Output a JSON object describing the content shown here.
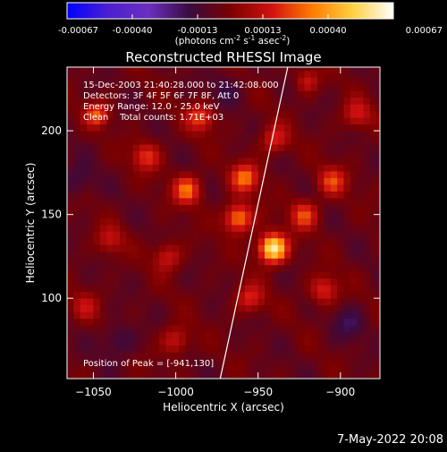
{
  "colorbar": {
    "ticks": [
      "-0.00067",
      "-0.00040",
      "-0.00013",
      "0.00013",
      "0.00040",
      "0.00067"
    ],
    "unit_label_parts": [
      "(photons cm",
      "-2",
      " s",
      "-1",
      " asec",
      "-2",
      ")"
    ],
    "stops": [
      "#0000ff",
      "#4b1fd0",
      "#6a2fbf",
      "#3a0a40",
      "#7a0000",
      "#d01010",
      "#ff7a00",
      "#ffd040",
      "#ffffff"
    ]
  },
  "header": {
    "title": "Reconstructed RHESSI Image",
    "info_lines": [
      "15-Dec-2003 21:40:28.000 to 21:42:08.000",
      "Detectors: 3F 4F 5F 6F 7F 8F, Att 0",
      "Energy Range: 12.0 - 25.0 keV",
      "Clean    Total counts: 1.71E+03"
    ],
    "peak_label": "Position of Peak = [-941,130]"
  },
  "footer": {
    "timestamp": "7-May-2022 20:08"
  },
  "chart_data": {
    "type": "heatmap",
    "title": "Reconstructed RHESSI Image",
    "xlabel": "Heliocentric X (arcsec)",
    "ylabel": "Heliocentric Y (arcsec)",
    "xlim": [
      -1066,
      -876
    ],
    "ylim": [
      52,
      238
    ],
    "x_ticks": [
      -1050,
      -1000,
      -950,
      -900
    ],
    "y_ticks": [
      100,
      150,
      200
    ],
    "x_tick_labels": [
      "−1050",
      "−1000",
      "−950",
      "−900"
    ],
    "y_tick_labels": [
      "100",
      "150",
      "200"
    ],
    "peak": {
      "x": -941,
      "y": 130
    },
    "limb_line": [
      [
        -973,
        52
      ],
      [
        -932,
        238
      ]
    ],
    "color_range": [
      -0.00067,
      0.00067
    ],
    "sources": [
      {
        "x": -941,
        "y": 130,
        "amp": 0.00067,
        "sigma": 6
      },
      {
        "x": -962,
        "y": 148,
        "amp": 0.00042,
        "sigma": 6
      },
      {
        "x": -958,
        "y": 172,
        "amp": 0.00036,
        "sigma": 6
      },
      {
        "x": -993,
        "y": 165,
        "amp": 0.00036,
        "sigma": 6
      },
      {
        "x": -985,
        "y": 208,
        "amp": 0.00028,
        "sigma": 6
      },
      {
        "x": -1048,
        "y": 210,
        "amp": 0.00032,
        "sigma": 5
      },
      {
        "x": -1018,
        "y": 185,
        "amp": 0.00026,
        "sigma": 6
      },
      {
        "x": -922,
        "y": 150,
        "amp": 0.0003,
        "sigma": 6
      },
      {
        "x": -905,
        "y": 170,
        "amp": 0.00028,
        "sigma": 6
      },
      {
        "x": -940,
        "y": 195,
        "amp": 0.00024,
        "sigma": 6
      },
      {
        "x": -955,
        "y": 100,
        "amp": 0.00024,
        "sigma": 6
      },
      {
        "x": -910,
        "y": 105,
        "amp": 0.00026,
        "sigma": 6
      },
      {
        "x": -1005,
        "y": 125,
        "amp": 0.00022,
        "sigma": 6
      },
      {
        "x": -1040,
        "y": 135,
        "amp": 0.00018,
        "sigma": 6
      },
      {
        "x": -1000,
        "y": 75,
        "amp": 0.00022,
        "sigma": 6
      },
      {
        "x": -890,
        "y": 210,
        "amp": 0.00022,
        "sigma": 6
      },
      {
        "x": -920,
        "y": 230,
        "amp": 0.0002,
        "sigma": 5
      },
      {
        "x": -1055,
        "y": 95,
        "amp": 0.00016,
        "sigma": 6
      },
      {
        "x": -1060,
        "y": 170,
        "amp": -0.00012,
        "sigma": 7
      },
      {
        "x": -1035,
        "y": 75,
        "amp": -0.00014,
        "sigma": 7
      },
      {
        "x": -895,
        "y": 85,
        "amp": -0.00012,
        "sigma": 7
      },
      {
        "x": -970,
        "y": 225,
        "amp": -0.0001,
        "sigma": 7
      }
    ]
  }
}
